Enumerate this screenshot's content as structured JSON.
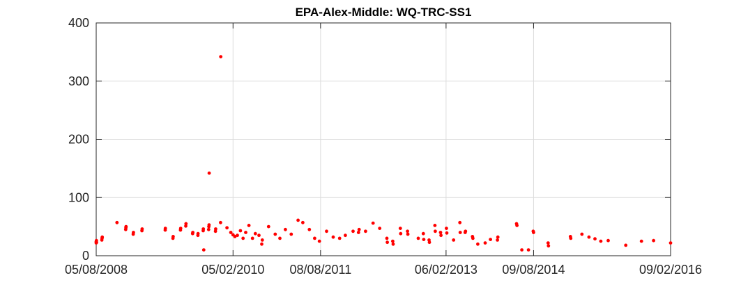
{
  "chart_data": {
    "type": "scatter",
    "title": "EPA-Alex-Middle: WQ-TRC-SS1",
    "xlabel": "",
    "ylabel": "",
    "grid": true,
    "marker_color": "#ff0000",
    "ylim": [
      0,
      400
    ],
    "yticks": [
      {
        "value": 0,
        "label": "0"
      },
      {
        "value": 100,
        "label": "100"
      },
      {
        "value": 200,
        "label": "200"
      },
      {
        "value": 300,
        "label": "300"
      },
      {
        "value": 400,
        "label": "400"
      }
    ],
    "xlim": [
      "2008-05-08",
      "2016-09-02"
    ],
    "xticks": [
      {
        "value": "2008-05-08",
        "label": "05/08/2008"
      },
      {
        "value": "2010-05-02",
        "label": "05/02/2010"
      },
      {
        "value": "2011-08-08",
        "label": "08/08/2011"
      },
      {
        "value": "2013-06-02",
        "label": "06/02/2013"
      },
      {
        "value": "2014-09-08",
        "label": "09/08/2014"
      },
      {
        "value": "2016-09-02",
        "label": "09/02/2016"
      }
    ],
    "series": [
      {
        "points": [
          {
            "x": "2008-05-08",
            "y": 22
          },
          {
            "x": "2008-05-08",
            "y": 24
          },
          {
            "x": "2008-05-09",
            "y": 26
          },
          {
            "x": "2008-05-10",
            "y": 23
          },
          {
            "x": "2008-06-07",
            "y": 27
          },
          {
            "x": "2008-06-08",
            "y": 30
          },
          {
            "x": "2008-06-09",
            "y": 32
          },
          {
            "x": "2008-08-26",
            "y": 57
          },
          {
            "x": "2008-10-11",
            "y": 45
          },
          {
            "x": "2008-10-12",
            "y": 48
          },
          {
            "x": "2008-10-13",
            "y": 50
          },
          {
            "x": "2008-11-20",
            "y": 37
          },
          {
            "x": "2008-11-21",
            "y": 40
          },
          {
            "x": "2009-01-05",
            "y": 43
          },
          {
            "x": "2009-01-06",
            "y": 46
          },
          {
            "x": "2009-05-08",
            "y": 44
          },
          {
            "x": "2009-05-09",
            "y": 47
          },
          {
            "x": "2009-06-18",
            "y": 30
          },
          {
            "x": "2009-06-19",
            "y": 33
          },
          {
            "x": "2009-07-28",
            "y": 44
          },
          {
            "x": "2009-07-29",
            "y": 47
          },
          {
            "x": "2009-08-25",
            "y": 51
          },
          {
            "x": "2009-08-26",
            "y": 55
          },
          {
            "x": "2009-09-30",
            "y": 38
          },
          {
            "x": "2009-10-01",
            "y": 40
          },
          {
            "x": "2009-10-28",
            "y": 35
          },
          {
            "x": "2009-10-29",
            "y": 38
          },
          {
            "x": "2009-11-25",
            "y": 43
          },
          {
            "x": "2009-11-26",
            "y": 46
          },
          {
            "x": "2009-11-28",
            "y": 10
          },
          {
            "x": "2009-12-24",
            "y": 45
          },
          {
            "x": "2009-12-25",
            "y": 50
          },
          {
            "x": "2009-12-26",
            "y": 53
          },
          {
            "x": "2009-12-27",
            "y": 142
          },
          {
            "x": "2010-01-29",
            "y": 42
          },
          {
            "x": "2010-01-30",
            "y": 46
          },
          {
            "x": "2010-02-25",
            "y": 57
          },
          {
            "x": "2010-02-26",
            "y": 342
          },
          {
            "x": "2010-03-31",
            "y": 48
          },
          {
            "x": "2010-04-20",
            "y": 40
          },
          {
            "x": "2010-05-02",
            "y": 36
          },
          {
            "x": "2010-05-12",
            "y": 33
          },
          {
            "x": "2010-05-25",
            "y": 35
          },
          {
            "x": "2010-06-10",
            "y": 43
          },
          {
            "x": "2010-06-24",
            "y": 30
          },
          {
            "x": "2010-07-08",
            "y": 40
          },
          {
            "x": "2010-07-25",
            "y": 52
          },
          {
            "x": "2010-08-13",
            "y": 30
          },
          {
            "x": "2010-08-28",
            "y": 38
          },
          {
            "x": "2010-09-16",
            "y": 35
          },
          {
            "x": "2010-10-01",
            "y": 20
          },
          {
            "x": "2010-10-04",
            "y": 27
          },
          {
            "x": "2010-11-06",
            "y": 50
          },
          {
            "x": "2010-12-11",
            "y": 37
          },
          {
            "x": "2011-01-05",
            "y": 30
          },
          {
            "x": "2011-02-03",
            "y": 45
          },
          {
            "x": "2011-03-06",
            "y": 37
          },
          {
            "x": "2011-04-11",
            "y": 61
          },
          {
            "x": "2011-05-06",
            "y": 57
          },
          {
            "x": "2011-06-10",
            "y": 45
          },
          {
            "x": "2011-07-08",
            "y": 30
          },
          {
            "x": "2011-08-02",
            "y": 25
          },
          {
            "x": "2011-09-09",
            "y": 42
          },
          {
            "x": "2011-10-14",
            "y": 32
          },
          {
            "x": "2011-11-17",
            "y": 30
          },
          {
            "x": "2011-12-17",
            "y": 35
          },
          {
            "x": "2012-01-27",
            "y": 42
          },
          {
            "x": "2012-02-25",
            "y": 40
          },
          {
            "x": "2012-02-28",
            "y": 45
          },
          {
            "x": "2012-04-02",
            "y": 42
          },
          {
            "x": "2012-05-12",
            "y": 56
          },
          {
            "x": "2012-06-16",
            "y": 47
          },
          {
            "x": "2012-07-24",
            "y": 30
          },
          {
            "x": "2012-07-26",
            "y": 23
          },
          {
            "x": "2012-08-24",
            "y": 25
          },
          {
            "x": "2012-08-26",
            "y": 20
          },
          {
            "x": "2012-10-03",
            "y": 47
          },
          {
            "x": "2012-10-05",
            "y": 38
          },
          {
            "x": "2012-11-10",
            "y": 42
          },
          {
            "x": "2012-11-12",
            "y": 37
          },
          {
            "x": "2013-01-06",
            "y": 30
          },
          {
            "x": "2013-02-02",
            "y": 38
          },
          {
            "x": "2013-02-04",
            "y": 28
          },
          {
            "x": "2013-03-04",
            "y": 27
          },
          {
            "x": "2013-03-06",
            "y": 23
          },
          {
            "x": "2013-04-04",
            "y": 52
          },
          {
            "x": "2013-04-06",
            "y": 42
          },
          {
            "x": "2013-05-04",
            "y": 40
          },
          {
            "x": "2013-05-06",
            "y": 35
          },
          {
            "x": "2013-06-04",
            "y": 47
          },
          {
            "x": "2013-06-06",
            "y": 39
          },
          {
            "x": "2013-07-12",
            "y": 27
          },
          {
            "x": "2013-08-14",
            "y": 57
          },
          {
            "x": "2013-08-16",
            "y": 40
          },
          {
            "x": "2013-09-11",
            "y": 40
          },
          {
            "x": "2013-09-13",
            "y": 42
          },
          {
            "x": "2013-10-20",
            "y": 33
          },
          {
            "x": "2013-10-22",
            "y": 30
          },
          {
            "x": "2013-11-17",
            "y": 20
          },
          {
            "x": "2013-12-26",
            "y": 22
          },
          {
            "x": "2014-01-23",
            "y": 28
          },
          {
            "x": "2014-03-01",
            "y": 27
          },
          {
            "x": "2014-03-03",
            "y": 32
          },
          {
            "x": "2014-06-10",
            "y": 55
          },
          {
            "x": "2014-06-12",
            "y": 52
          },
          {
            "x": "2014-07-08",
            "y": 10
          },
          {
            "x": "2014-08-12",
            "y": 10
          },
          {
            "x": "2014-09-06",
            "y": 42
          },
          {
            "x": "2014-09-08",
            "y": 40
          },
          {
            "x": "2014-11-24",
            "y": 22
          },
          {
            "x": "2014-11-26",
            "y": 17
          },
          {
            "x": "2015-03-22",
            "y": 33
          },
          {
            "x": "2015-03-24",
            "y": 30
          },
          {
            "x": "2015-05-22",
            "y": 37
          },
          {
            "x": "2015-06-28",
            "y": 32
          },
          {
            "x": "2015-07-30",
            "y": 29
          },
          {
            "x": "2015-08-30",
            "y": 25
          },
          {
            "x": "2015-10-08",
            "y": 26
          },
          {
            "x": "2016-01-09",
            "y": 18
          },
          {
            "x": "2016-04-01",
            "y": 25
          },
          {
            "x": "2016-06-04",
            "y": 26
          },
          {
            "x": "2016-09-02",
            "y": 22
          }
        ]
      }
    ]
  }
}
